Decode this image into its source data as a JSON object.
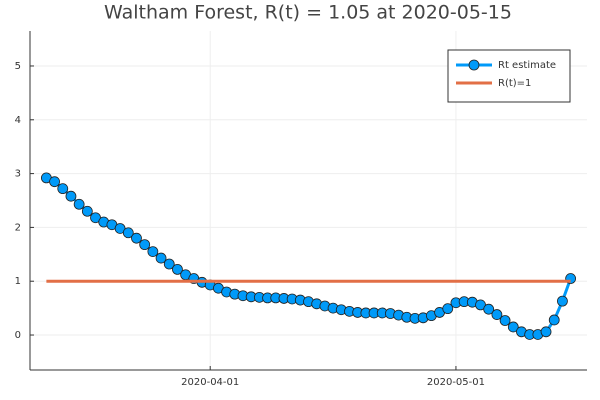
{
  "chart_data": {
    "type": "line",
    "title": "Waltham Forest, R(t) = 1.05 at 2020-05-15",
    "series": [
      {
        "name": "Rt estimate",
        "color": "#009af9",
        "markers": true,
        "x": [
          "2020-03-12",
          "2020-03-13",
          "2020-03-14",
          "2020-03-15",
          "2020-03-16",
          "2020-03-17",
          "2020-03-18",
          "2020-03-19",
          "2020-03-20",
          "2020-03-21",
          "2020-03-22",
          "2020-03-23",
          "2020-03-24",
          "2020-03-25",
          "2020-03-26",
          "2020-03-27",
          "2020-03-28",
          "2020-03-29",
          "2020-03-30",
          "2020-03-31",
          "2020-04-01",
          "2020-04-02",
          "2020-04-03",
          "2020-04-04",
          "2020-04-05",
          "2020-04-06",
          "2020-04-07",
          "2020-04-08",
          "2020-04-09",
          "2020-04-10",
          "2020-04-11",
          "2020-04-12",
          "2020-04-13",
          "2020-04-14",
          "2020-04-15",
          "2020-04-16",
          "2020-04-17",
          "2020-04-18",
          "2020-04-19",
          "2020-04-20",
          "2020-04-21",
          "2020-04-22",
          "2020-04-23",
          "2020-04-24",
          "2020-04-25",
          "2020-04-26",
          "2020-04-27",
          "2020-04-28",
          "2020-04-29",
          "2020-04-30",
          "2020-05-01",
          "2020-05-02",
          "2020-05-03",
          "2020-05-04",
          "2020-05-05",
          "2020-05-06",
          "2020-05-07",
          "2020-05-08",
          "2020-05-09",
          "2020-05-10",
          "2020-05-11",
          "2020-05-12",
          "2020-05-13",
          "2020-05-14",
          "2020-05-15"
        ],
        "values": [
          2.92,
          2.85,
          2.72,
          2.58,
          2.43,
          2.3,
          2.18,
          2.1,
          2.05,
          1.98,
          1.9,
          1.8,
          1.68,
          1.55,
          1.43,
          1.32,
          1.22,
          1.12,
          1.05,
          0.98,
          0.93,
          0.87,
          0.8,
          0.76,
          0.73,
          0.71,
          0.7,
          0.69,
          0.69,
          0.68,
          0.67,
          0.65,
          0.62,
          0.58,
          0.54,
          0.5,
          0.47,
          0.44,
          0.42,
          0.41,
          0.41,
          0.41,
          0.4,
          0.37,
          0.33,
          0.31,
          0.32,
          0.36,
          0.42,
          0.49,
          0.6,
          0.62,
          0.61,
          0.56,
          0.48,
          0.38,
          0.27,
          0.15,
          0.06,
          0.01,
          0.01,
          0.06,
          0.28,
          0.63,
          1.05
        ]
      },
      {
        "name": "R(t)=1",
        "color": "#e26f46",
        "markers": false,
        "x": [
          "2020-03-12",
          "2020-05-15"
        ],
        "values": [
          1,
          1
        ]
      }
    ],
    "xlim": [
      "2020-03-10",
      "2020-05-17"
    ],
    "xticks": [
      "2020-04-01",
      "2020-05-01"
    ],
    "ylim": [
      -0.65,
      5.65
    ],
    "yticks": [
      0,
      1,
      2,
      3,
      4,
      5
    ],
    "grid": true,
    "legend": "top-right"
  }
}
